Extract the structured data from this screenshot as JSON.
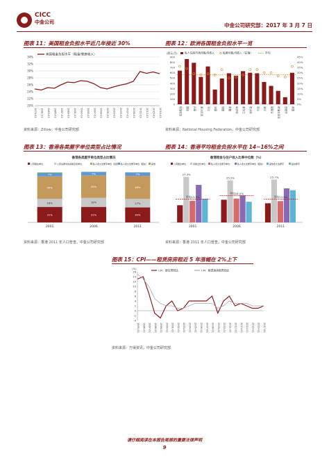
{
  "header": {
    "logo_text": "CICC",
    "logo_subtext": "中金公司",
    "right_text": "中金公司研究部：2017 年 3 月 7 日"
  },
  "figures": {
    "fig11": {
      "title": "图表 11：美国租金负担水平近几年接近 30%",
      "source": "资料来源：Zillow，中金公司研究部"
    },
    "fig12": {
      "title": "图表 12：欧洲各国租金负担水平一览",
      "source": "资料来源：National Housing Federation，中金公司研究部"
    },
    "fig13": {
      "title": "图表 13：香港各类屋宇单位类型占比情况",
      "source": "资料来源：香港 2011 年人口普查，中金公司研究部"
    },
    "fig14": {
      "title": "图表 14：香港平均租金负担水平在 14~16%之间",
      "source": "资料来源：香港 2011 年人口普查，中金公司研究部"
    },
    "fig15": {
      "title": "图表 15：CPI——租赁房房租近 5 年涨幅在 2%上下",
      "source": "资料来源：万得资讯，中金公司研究部"
    }
  },
  "footer": {
    "note": "请仔细阅读在本报告尾部的重要法律声明",
    "page": "9"
  },
  "chart_data": [
    {
      "id": "fig11",
      "type": "line",
      "legend": [
        "美国租金负担水平（租金/家庭收入）"
      ],
      "ylim": [
        20,
        34
      ],
      "yticks": [
        "20%",
        "22%",
        "24%",
        "26%",
        "28%",
        "30%",
        "32%",
        "34%"
      ],
      "x": [
        "1979-03",
        "1981-03",
        "1983-03",
        "1985-03",
        "1987-03",
        "1989-03",
        "1991-03",
        "1993-03",
        "1995-03",
        "1997-03",
        "1999-03",
        "2001-03",
        "2003-03",
        "2005-03",
        "2007-03",
        "2009-03",
        "2011-03",
        "2013-03",
        "2015-03",
        "2016-01"
      ],
      "series": [
        {
          "name": "美国租金负担水平（租金/家庭收入）",
          "values": [
            24.8,
            24.5,
            25.2,
            25.0,
            26.0,
            26.8,
            26.6,
            27.2,
            27.0,
            26.3,
            25.2,
            24.8,
            25.4,
            25.9,
            26.3,
            27.0,
            29.8,
            29.3,
            29.7,
            29.2
          ]
        }
      ],
      "color": "#8b1a1a"
    },
    {
      "id": "fig12",
      "type": "bar",
      "legend": [
        "私人住房市场月租/月收入",
        "私营月租/月收入（右轴）",
        "平均"
      ],
      "left_axis": {
        "label": "(欧元/月)",
        "ylim": [
          0,
          900
        ],
        "ticks": [
          "0",
          "100",
          "200",
          "300",
          "400",
          "500",
          "600",
          "700",
          "800",
          "900"
        ]
      },
      "right_axis": {
        "ylim": [
          0,
          45
        ],
        "ticks": [
          "0%",
          "5%",
          "10%",
          "15%",
          "20%",
          "25%",
          "30%",
          "35%",
          "40%",
          "45%"
        ]
      },
      "categories": [
        "保加利亚",
        "捷克",
        "丹麦",
        "爱沙尼亚",
        "芬兰",
        "法国",
        "德国",
        "希腊",
        "匈牙利",
        "爱尔兰",
        "意大利",
        "荷兰",
        "波兰",
        "葡萄牙",
        "斯洛文尼亚",
        "西班牙",
        "英国"
      ],
      "values": [
        640,
        860,
        790,
        520,
        720,
        280,
        490,
        590,
        545,
        630,
        600,
        590,
        425,
        350,
        255,
        135,
        600
      ],
      "right_values": [
        36,
        34,
        29,
        28,
        29,
        28,
        33,
        25,
        26,
        28,
        33,
        33,
        30,
        30,
        27,
        26,
        36
      ],
      "average_pct": 28
    },
    {
      "id": "fig13",
      "type": "bar",
      "subtitle": "香港各类屋宇单位类型占比情况",
      "legend": [
        "公营租住单位",
        "公营房屋中的资助自置单位",
        "私人永久性屋宇单位（自置）",
        "私人永久性屋宇单位（租住）",
        "其他"
      ],
      "categories": [
        "2001",
        "2006",
        "2011"
      ],
      "series": [
        {
          "name": "公营租住单位",
          "values": [
            31,
            31,
            30
          ]
        },
        {
          "name": "公营房屋中的资助自置单位",
          "values": [
            16,
            18,
            17
          ]
        },
        {
          "name": "私人永久性屋宇单位（自置）",
          "values": [
            45,
            45,
            46
          ]
        },
        {
          "name": "私人永久性屋宇单位（租住）",
          "values": [
            7,
            7,
            7
          ]
        },
        {
          "name": "其他",
          "values": [
            1,
            0,
            0
          ]
        }
      ],
      "ylim": [
        0,
        100
      ]
    },
    {
      "id": "fig14",
      "type": "bar",
      "subtitle": "香港租金与住户收入比率中位数（%）",
      "legend": [
        "公营租住单位",
        "资助出售单位",
        "私人永久性屋宇单位",
        "私人永久性屋宇单位（租住）",
        "其他永久性屋宇",
        "临时屋宇"
      ],
      "categories": [
        "2001",
        "2006",
        "2011"
      ],
      "series": [
        {
          "name": "公营租住单位",
          "values": [
            10.3,
            13.6,
            11.5
          ]
        },
        {
          "name": "资助出售单位",
          "values": [
            27.3,
            25.2,
            25.7
          ]
        },
        {
          "name": "私人永久性屋宇单位",
          "values": [
            13.0,
            14.3,
            12.8
          ]
        },
        {
          "name": "私人永久性屋宇单位（租住）",
          "values": [
            22.5,
            16.2,
            20.4
          ]
        },
        {
          "name": "其他永久性屋宇",
          "values": [
            14.2,
            12.4,
            19.3
          ]
        }
      ],
      "average_labels": [
        "平均13.9%",
        "平均16.0%",
        "平均13.9%"
      ],
      "data_labels": [
        "27.3%",
        "25.2%",
        "25.7%"
      ],
      "average_values": [
        13.9,
        16.0,
        13.9
      ],
      "ylim": [
        0,
        30
      ]
    },
    {
      "id": "fig15",
      "type": "line",
      "ylabel": "(%)",
      "legend": [
        "CPI：居住类同比",
        "CPI：租赁房房租类同比"
      ],
      "ylim": [
        -4,
        16
      ],
      "yticks": [
        "-4",
        "-2",
        "0",
        "2",
        "4",
        "6",
        "8",
        "10",
        "12",
        "14",
        "16"
      ],
      "x": [
        "1995-01",
        "1996-01",
        "1997-01",
        "1998-01",
        "1999-01",
        "2000-01",
        "2001-01",
        "2002-01",
        "2003-01",
        "2004-01",
        "2005-01",
        "2006-01",
        "2007-01",
        "2008-01",
        "2009-01",
        "2010-01",
        "2011-01",
        "2012-01",
        "2013-01",
        "2014-01",
        "2015-01",
        "2016-01",
        "2017-01"
      ],
      "series": [
        {
          "name": "CPI：居住类同比",
          "values": [
            13,
            14,
            7,
            -1,
            -3,
            2,
            4,
            0,
            1,
            4,
            4,
            4,
            4,
            6,
            -1,
            4,
            6,
            2,
            3,
            2,
            1,
            1,
            2
          ]
        },
        {
          "name": "CPI：租赁房房租类同比",
          "values": [
            15,
            13,
            10,
            5,
            3,
            2,
            2,
            1,
            1,
            2,
            3,
            3,
            3,
            3,
            1,
            2,
            4,
            3,
            3,
            3,
            2,
            2,
            2
          ]
        }
      ]
    }
  ]
}
